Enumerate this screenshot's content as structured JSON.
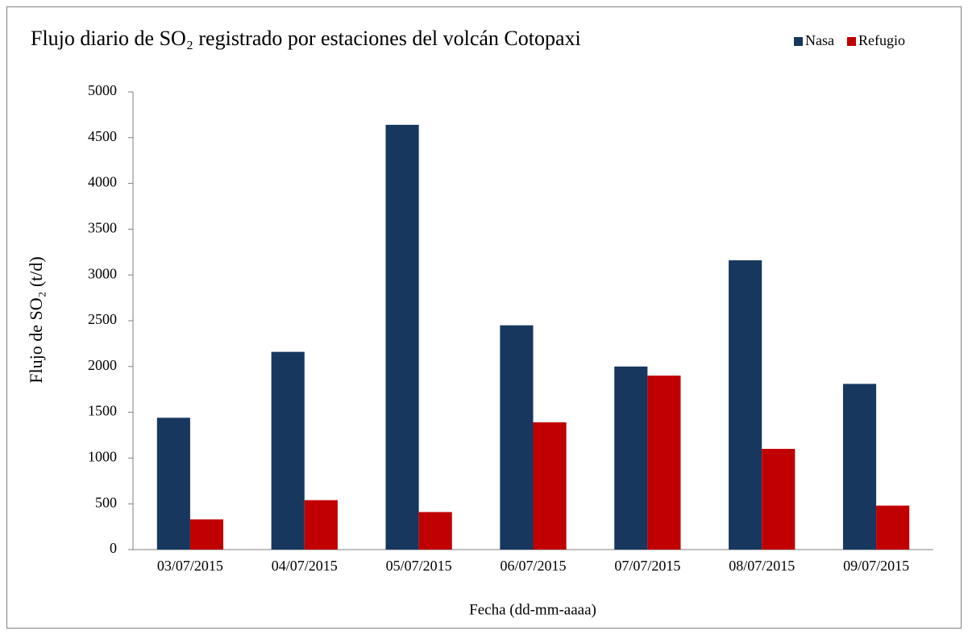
{
  "chart_data": {
    "type": "bar",
    "title": "Flujo diario de SO₂ registrado por estaciones del volcán Cotopaxi",
    "x_label": "Fecha (dd-mm-aaaa)",
    "y_label": "Flujo de SO₂ (t/d)",
    "categories": [
      "03/07/2015",
      "04/07/2015",
      "05/07/2015",
      "06/07/2015",
      "07/07/2015",
      "08/07/2015",
      "09/07/2015"
    ],
    "series": [
      {
        "name": "Nasa",
        "color": "#17375e",
        "values": [
          1440,
          2160,
          4640,
          2450,
          2000,
          3160,
          1810
        ]
      },
      {
        "name": "Refugio",
        "color": "#c00000",
        "values": [
          330,
          540,
          410,
          1390,
          1900,
          1100,
          480
        ]
      }
    ],
    "ylim": [
      0,
      5000
    ],
    "yticks": [
      0,
      500,
      1000,
      1500,
      2000,
      2500,
      3000,
      3500,
      4000,
      4500,
      5000
    ],
    "legend": "top-right",
    "grid": false
  }
}
